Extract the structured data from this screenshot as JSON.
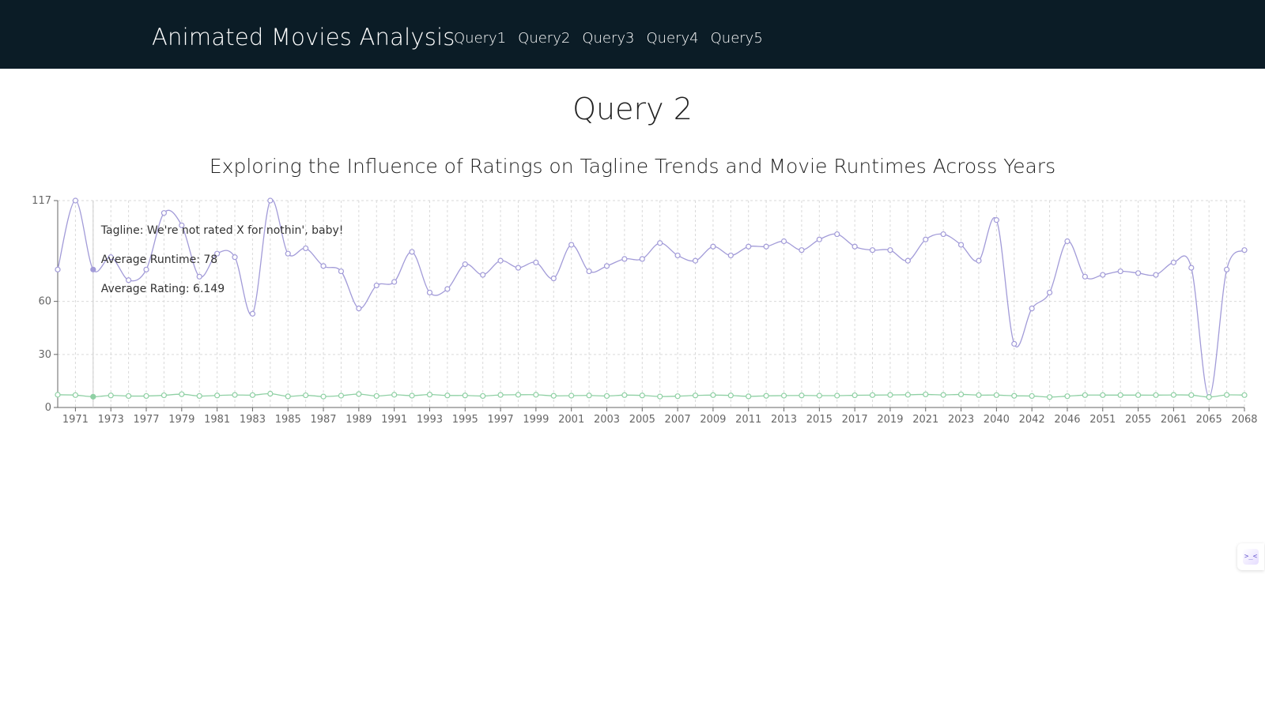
{
  "nav": {
    "brand": "Animated Movies Analysis",
    "links": [
      "Query1",
      "Query2",
      "Query3",
      "Query4",
      "Query5"
    ]
  },
  "page": {
    "title": "Query 2"
  },
  "widget": {
    "glyph": ">_<"
  },
  "chart_data": {
    "type": "line",
    "title": "Exploring the Influence of Ratings on Tagline Trends and Movie Runtimes Across Years",
    "xlabel": "",
    "ylabel": "",
    "ylim": [
      0,
      117
    ],
    "y_ticks": [
      0,
      30,
      60,
      117
    ],
    "grid": true,
    "legend": "none",
    "colors": {
      "runtime": "#a29bd8",
      "rating": "#8fd0a4",
      "grid": "#d9d9d9",
      "axis": "#666666"
    },
    "x": [
      "1970",
      "1971",
      "1972",
      "1973",
      "1974",
      "1977",
      "1978",
      "1979",
      "1980",
      "1981",
      "1982",
      "1983",
      "1984",
      "1985",
      "1986",
      "1987",
      "1988",
      "1989",
      "1990",
      "1991",
      "1992",
      "1993",
      "1994",
      "1995",
      "1996",
      "1997",
      "1998",
      "1999",
      "2000",
      "2001",
      "2002",
      "2003",
      "2004",
      "2005",
      "2006",
      "2007",
      "2008",
      "2009",
      "2010",
      "2011",
      "2012",
      "2013",
      "2014",
      "2015",
      "2016",
      "2017",
      "2018",
      "2019",
      "2020",
      "2021",
      "2022",
      "2023",
      "2024",
      "2040",
      "2041",
      "2042",
      "2045",
      "2046",
      "2050",
      "2051",
      "2052",
      "2055",
      "2056",
      "2061",
      "2064",
      "2065",
      "2067",
      "2068"
    ],
    "x_tick_labels": [
      "1971",
      "1973",
      "1977",
      "1979",
      "1981",
      "1983",
      "1985",
      "1987",
      "1989",
      "1991",
      "1993",
      "1995",
      "1997",
      "1999",
      "2001",
      "2003",
      "2005",
      "2007",
      "2009",
      "2011",
      "2013",
      "2015",
      "2017",
      "2019",
      "2021",
      "2023",
      "2040",
      "2042",
      "2046",
      "2051",
      "2055",
      "2061",
      "2065",
      "2068"
    ],
    "series": [
      {
        "key": "runtime",
        "values": [
          78,
          117,
          78,
          85,
          72,
          78,
          110,
          103,
          74,
          87,
          85,
          53,
          117,
          87,
          90,
          80,
          77,
          56,
          69,
          71,
          88,
          65,
          67,
          81,
          75,
          83,
          79,
          82,
          73,
          92,
          77,
          80,
          84,
          84,
          93,
          86,
          83,
          91,
          86,
          91,
          91,
          94,
          89,
          95,
          98,
          91,
          89,
          89,
          83,
          95,
          98,
          92,
          83,
          106,
          36,
          56,
          65,
          94,
          74,
          75,
          77,
          76,
          75,
          82,
          79,
          6,
          78,
          89
        ]
      },
      {
        "key": "rating",
        "values": [
          7.2,
          7.0,
          6.1,
          6.8,
          6.5,
          6.5,
          6.9,
          7.5,
          6.5,
          6.8,
          7.1,
          7.0,
          7.8,
          6.3,
          6.9,
          6.2,
          6.7,
          7.6,
          6.5,
          7.2,
          6.7,
          7.3,
          6.8,
          6.8,
          6.5,
          7.1,
          7.2,
          7.2,
          6.6,
          6.7,
          6.8,
          6.5,
          7.0,
          6.8,
          6.2,
          6.4,
          6.8,
          7.0,
          6.8,
          6.3,
          6.6,
          6.7,
          6.8,
          6.7,
          6.7,
          6.9,
          7.0,
          7.1,
          7.2,
          7.4,
          7.1,
          7.4,
          7.0,
          7.0,
          6.6,
          6.5,
          5.9,
          6.4,
          7.0,
          7.0,
          7.0,
          7.0,
          7.0,
          7.1,
          7.0,
          5.9,
          7.1,
          7.0
        ]
      }
    ],
    "tooltip": {
      "index": 2,
      "lines": [
        "Tagline: We're not rated X for nothin', baby!",
        "Average Runtime: 78",
        "Average Rating: 6.149"
      ]
    }
  }
}
